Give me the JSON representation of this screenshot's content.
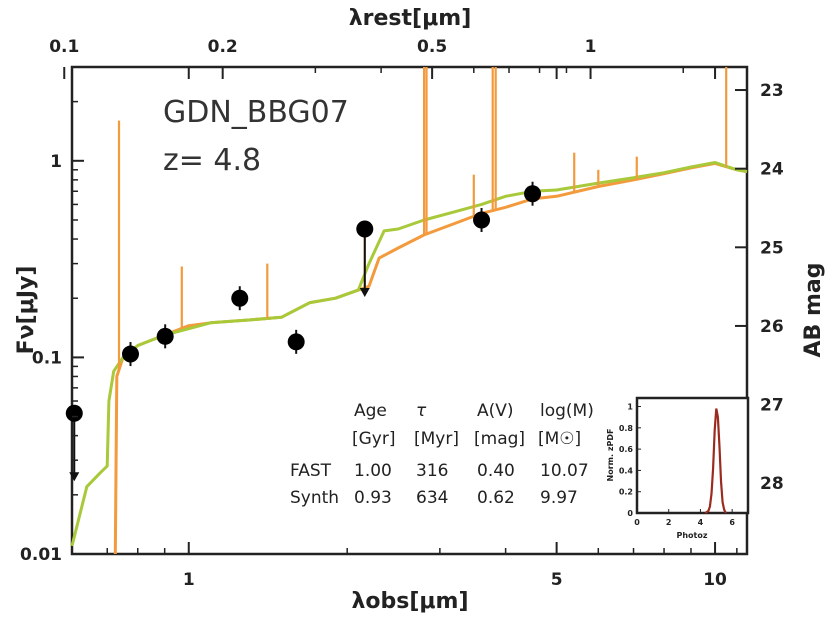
{
  "chart_data": {
    "type": "line",
    "object_name": "GDN_BBG07",
    "redshift_label": "z= 4.8",
    "xlabel": "λobs[μm]",
    "ylabel": "Fν[μJy]",
    "ylabel_right": "AB mag",
    "xlabel_top": "λrest[μm]",
    "xlim": [
      0.6,
      11.5
    ],
    "ylim": [
      0.01,
      3.0
    ],
    "x_scale": "log",
    "y_scale": "log",
    "x_ticks": [
      1,
      5,
      10
    ],
    "x_tick_labels": [
      "1",
      "5",
      "10"
    ],
    "y_ticks": [
      0.01,
      0.1,
      1
    ],
    "y_tick_labels": [
      "0.01",
      "0.1",
      "1"
    ],
    "top_ticks_rest": [
      0.1,
      0.2,
      0.5,
      1
    ],
    "top_tick_labels": [
      "0.1",
      "0.2",
      "0.5",
      "1"
    ],
    "right_ticks_mag": [
      23,
      24,
      25,
      26,
      27,
      28
    ],
    "right_tick_labels": [
      "23",
      "24",
      "25",
      "26",
      "27",
      "28"
    ],
    "photometry": [
      {
        "x": 0.606,
        "y": 0.052,
        "upper_limit": true
      },
      {
        "x": 0.775,
        "y": 0.104,
        "upper_limit": false
      },
      {
        "x": 0.902,
        "y": 0.128,
        "upper_limit": false
      },
      {
        "x": 1.25,
        "y": 0.2,
        "upper_limit": false
      },
      {
        "x": 1.6,
        "y": 0.12,
        "upper_limit": false
      },
      {
        "x": 2.16,
        "y": 0.45,
        "upper_limit": true
      },
      {
        "x": 3.6,
        "y": 0.5,
        "upper_limit": false
      },
      {
        "x": 4.5,
        "y": 0.68,
        "upper_limit": false
      }
    ],
    "series": [
      {
        "name": "FAST",
        "color": "#a8c93a",
        "x": [
          0.6,
          0.64,
          0.68,
          0.7,
          0.705,
          0.72,
          0.75,
          0.8,
          0.9,
          1.0,
          1.1,
          1.3,
          1.5,
          1.7,
          1.9,
          2.1,
          2.2,
          2.35,
          2.5,
          2.8,
          3.2,
          3.6,
          4.0,
          4.5,
          5.0,
          6.0,
          7.0,
          8.0,
          9.0,
          10.0,
          11.0,
          11.5
        ],
        "y": [
          0.011,
          0.022,
          0.026,
          0.028,
          0.06,
          0.085,
          0.1,
          0.115,
          0.13,
          0.14,
          0.15,
          0.155,
          0.16,
          0.19,
          0.2,
          0.22,
          0.3,
          0.44,
          0.45,
          0.5,
          0.55,
          0.6,
          0.66,
          0.7,
          0.71,
          0.77,
          0.82,
          0.87,
          0.93,
          0.98,
          0.9,
          0.88
        ]
      },
      {
        "name": "Synth",
        "color": "#f39a3c",
        "x": [
          0.725,
          0.73,
          0.75,
          0.8,
          0.9,
          1.0,
          1.1,
          1.3,
          1.5,
          1.7,
          1.9,
          2.1,
          2.2,
          2.3,
          2.5,
          2.8,
          3.2,
          3.6,
          4.0,
          4.5,
          5.0,
          6.0,
          7.0,
          8.0,
          9.0,
          10.0,
          11.0,
          11.5
        ],
        "y": [
          0.01,
          0.08,
          0.1,
          0.115,
          0.13,
          0.145,
          0.15,
          0.155,
          0.16,
          0.19,
          0.2,
          0.22,
          0.23,
          0.32,
          0.36,
          0.42,
          0.48,
          0.54,
          0.58,
          0.64,
          0.66,
          0.74,
          0.8,
          0.86,
          0.92,
          0.97,
          0.9,
          0.88
        ]
      }
    ],
    "emission_lines": [
      {
        "x": 0.737,
        "y": 1.6
      },
      {
        "x": 0.97,
        "y": 0.29
      },
      {
        "x": 1.41,
        "y": 0.3
      },
      {
        "x": 2.16,
        "y": 0.41
      },
      {
        "x": 2.8,
        "y": 3.0
      },
      {
        "x": 2.83,
        "y": 3.0
      },
      {
        "x": 3.48,
        "y": 0.85
      },
      {
        "x": 3.78,
        "y": 3.0
      },
      {
        "x": 3.83,
        "y": 3.0
      },
      {
        "x": 5.4,
        "y": 1.1
      },
      {
        "x": 6.0,
        "y": 0.9
      },
      {
        "x": 7.1,
        "y": 1.05
      },
      {
        "x": 10.5,
        "y": 3.0
      }
    ],
    "table": {
      "headers": [
        "Age",
        "τ",
        "A(V)",
        "log(M)"
      ],
      "units": [
        "[Gyr]",
        "[Myr]",
        "[mag]",
        "[M☉]"
      ],
      "rows": [
        {
          "name": "FAST",
          "color": "#a8c93a",
          "values": [
            "1.00",
            "316",
            "0.40",
            "10.07"
          ]
        },
        {
          "name": "Synth",
          "color": "#f39a3c",
          "values": [
            "0.93",
            "634",
            "0.62",
            "9.97"
          ]
        }
      ]
    },
    "inset": {
      "type": "line",
      "xlabel": "Photoz",
      "ylabel": "Norm. zPDF",
      "xlim": [
        0,
        7
      ],
      "ylim": [
        0,
        1.08
      ],
      "x_ticks": [
        0,
        2,
        4,
        6
      ],
      "x_tick_labels": [
        "0",
        "2",
        "4",
        "6"
      ],
      "y_ticks": [
        0,
        0.2,
        0.4,
        0.6,
        0.8,
        1
      ],
      "y_tick_labels": [
        "0",
        "0.2",
        "0.4",
        "0.6",
        "0.8",
        "1"
      ],
      "color": "#9b2b1e",
      "x": [
        4.3,
        4.5,
        4.6,
        4.7,
        4.8,
        4.9,
        5.0,
        5.1,
        5.2,
        5.3,
        5.4,
        5.5,
        5.6
      ],
      "y": [
        0.0,
        0.02,
        0.06,
        0.18,
        0.42,
        0.78,
        0.98,
        0.9,
        0.62,
        0.3,
        0.1,
        0.03,
        0.0
      ]
    }
  }
}
